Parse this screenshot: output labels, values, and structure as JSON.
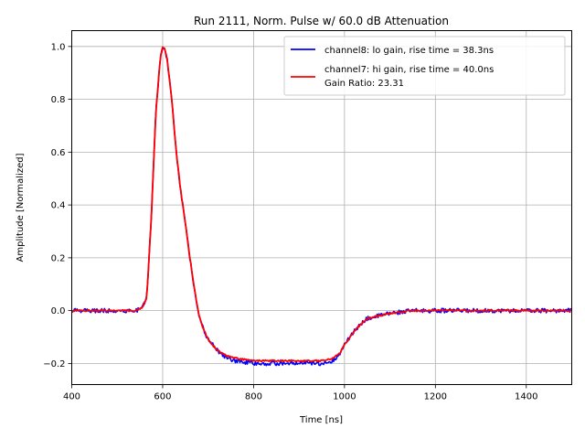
{
  "chart_data": {
    "type": "line",
    "title": "Run 2111, Norm. Pulse w/ 60.0 dB Attenuation",
    "xlabel": "Time [ns]",
    "ylabel": "Amplitude [Normalized]",
    "xlim": [
      400,
      1500
    ],
    "ylim": [
      -0.28,
      1.06
    ],
    "x_ticks": [
      400,
      600,
      800,
      1000,
      1200,
      1400
    ],
    "x_tick_labels": [
      "400",
      "600",
      "800",
      "1000",
      "1200",
      "1400"
    ],
    "y_ticks": [
      -0.2,
      0.0,
      0.2,
      0.4,
      0.6,
      0.8,
      1.0
    ],
    "y_tick_labels": [
      "−0.2",
      "0.0",
      "0.2",
      "0.4",
      "0.6",
      "0.8",
      "1.0"
    ],
    "grid": true,
    "legend_position": "top-right",
    "legend_extra_text": "Gain Ratio: 23.31",
    "series": [
      {
        "name": "channel8: lo gain, rise time = 38.3ns",
        "color": "#0000ff",
        "noise": 0.008,
        "x": [
          400,
          540,
          555,
          565,
          575,
          585,
          595,
          600,
          605,
          610,
          620,
          630,
          640,
          650,
          660,
          670,
          680,
          690,
          700,
          720,
          740,
          760,
          780,
          800,
          850,
          900,
          950,
          975,
          990,
          1000,
          1025,
          1050,
          1100,
          1150,
          1200,
          1300,
          1400,
          1500
        ],
        "y": [
          0.0,
          0.0,
          0.01,
          0.05,
          0.35,
          0.75,
          0.96,
          1.0,
          0.99,
          0.95,
          0.8,
          0.6,
          0.45,
          0.33,
          0.2,
          0.08,
          -0.02,
          -0.07,
          -0.11,
          -0.15,
          -0.18,
          -0.19,
          -0.195,
          -0.2,
          -0.2,
          -0.2,
          -0.2,
          -0.19,
          -0.16,
          -0.13,
          -0.07,
          -0.03,
          -0.01,
          0.0,
          0.0,
          0.0,
          0.0,
          0.0
        ]
      },
      {
        "name": "channel7: hi gain, rise time = 40.0ns",
        "color": "#ff0000",
        "noise": 0.003,
        "x": [
          400,
          540,
          555,
          565,
          575,
          585,
          595,
          600,
          605,
          610,
          620,
          630,
          640,
          650,
          660,
          670,
          680,
          690,
          700,
          720,
          740,
          760,
          780,
          800,
          850,
          900,
          950,
          975,
          990,
          1000,
          1025,
          1050,
          1100,
          1150,
          1200,
          1300,
          1400,
          1500
        ],
        "y": [
          0.0,
          0.0,
          0.01,
          0.05,
          0.35,
          0.75,
          0.96,
          1.0,
          0.99,
          0.95,
          0.8,
          0.6,
          0.45,
          0.33,
          0.2,
          0.08,
          -0.02,
          -0.07,
          -0.11,
          -0.15,
          -0.17,
          -0.18,
          -0.185,
          -0.19,
          -0.19,
          -0.19,
          -0.19,
          -0.18,
          -0.16,
          -0.13,
          -0.07,
          -0.03,
          -0.01,
          0.0,
          0.0,
          0.0,
          0.0,
          0.0
        ]
      }
    ]
  }
}
